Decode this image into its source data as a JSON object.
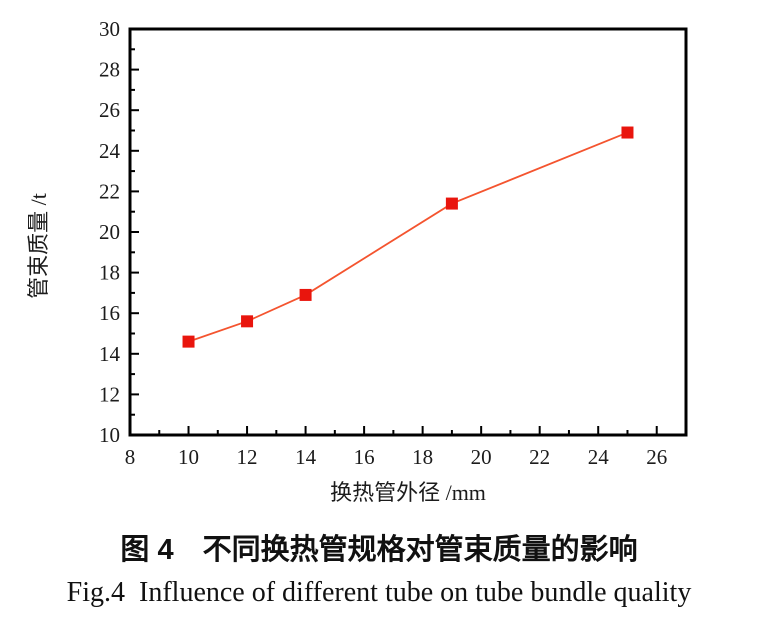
{
  "figure": {
    "caption_cn": "图 4　不同换热管规格对管束质量的影响",
    "caption_en": "Fig.4  Influence of different tube on tube bundle quality"
  },
  "chart_data": {
    "type": "line",
    "title": "图 4　不同换热管规格对管束质量的影响",
    "subtitle": "Fig.4  Influence of different tube on tube bundle quality",
    "xlabel": "换热管外径 /mm",
    "ylabel": "管束质量 /t",
    "x": [
      10,
      12,
      14,
      19,
      25
    ],
    "y": [
      14.6,
      15.6,
      16.9,
      21.4,
      24.9
    ],
    "xlim": [
      8,
      27
    ],
    "ylim": [
      10,
      30
    ],
    "xticks": [
      8,
      10,
      12,
      14,
      16,
      18,
      20,
      22,
      24,
      26
    ],
    "yticks": [
      10,
      12,
      14,
      16,
      18,
      20,
      22,
      24,
      26,
      28,
      30
    ],
    "minor_tick_step": 1,
    "grid": false,
    "legend": null,
    "marker": "square",
    "line_color": "#f4542f",
    "marker_color": "#e9150d",
    "axis_color": "#000000"
  }
}
